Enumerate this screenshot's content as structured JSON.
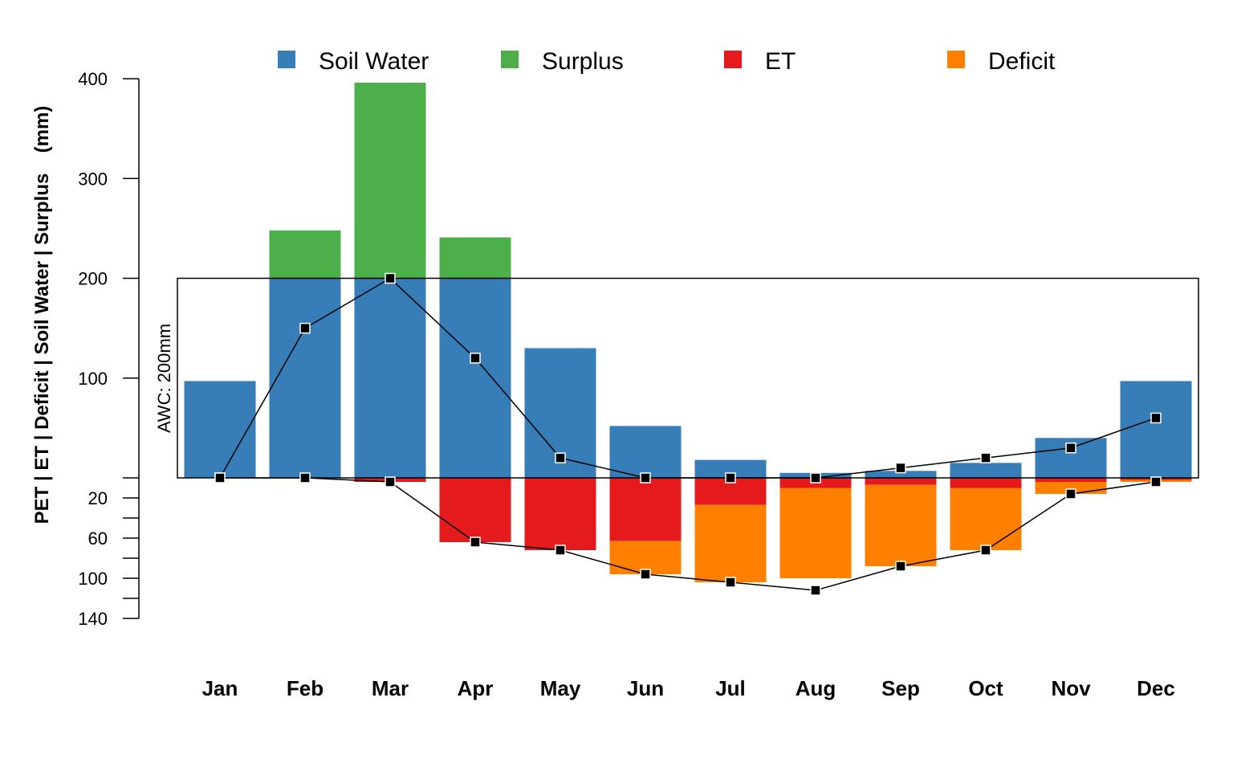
{
  "chart_data": {
    "type": "bar",
    "title": "",
    "xlabel": "",
    "ylabel": {
      "main": "PET | ET | Deficit | Soil Water | Surplus",
      "unit": "(mm)"
    },
    "categories": [
      "Jan",
      "Feb",
      "Mar",
      "Apr",
      "May",
      "Jun",
      "Jul",
      "Aug",
      "Sep",
      "Oct",
      "Nov",
      "Dec"
    ],
    "upper_axis": {
      "ylim": [
        0,
        400
      ],
      "ticks": [
        100,
        200,
        300,
        400
      ]
    },
    "lower_axis": {
      "ylim": [
        0,
        140
      ],
      "ticks": [
        20,
        60,
        100,
        140
      ],
      "minor_ticks": [
        40,
        80,
        120
      ]
    },
    "awc": {
      "value": 200,
      "label": "AWC: 200mm"
    },
    "legend": {
      "position": "top",
      "entries": [
        {
          "name": "Soil Water",
          "color": "#377EB8"
        },
        {
          "name": "Surplus",
          "color": "#4DAF4A"
        },
        {
          "name": "ET",
          "color": "#E41A1C"
        },
        {
          "name": "Deficit",
          "color": "#FF7F00"
        }
      ]
    },
    "series": [
      {
        "name": "Soil Water",
        "color": "#377EB8",
        "values": [
          97,
          200,
          200,
          200,
          130,
          52,
          18,
          5,
          7,
          15,
          40,
          97
        ]
      },
      {
        "name": "Surplus",
        "color": "#4DAF4A",
        "values": [
          0,
          48,
          196,
          41,
          0,
          0,
          0,
          0,
          0,
          0,
          0,
          0
        ]
      },
      {
        "name": "ET",
        "color": "#E41A1C",
        "values": [
          0,
          0,
          4,
          64,
          72,
          63,
          27,
          10,
          7,
          10,
          4,
          2
        ]
      },
      {
        "name": "Deficit",
        "color": "#FF7F00",
        "values": [
          0,
          0,
          0,
          0,
          0,
          33,
          77,
          90,
          81,
          62,
          12,
          2
        ]
      }
    ],
    "lines": {
      "upper": {
        "values": [
          0,
          150,
          200,
          120,
          20,
          0,
          0,
          0,
          10,
          20,
          30,
          60
        ]
      },
      "lower": {
        "values": [
          0,
          0,
          4,
          64,
          72,
          96,
          104,
          112,
          88,
          72,
          16,
          4
        ]
      }
    },
    "colors": {
      "axis": "#000000",
      "line": "#000000",
      "marker_fill": "#000000",
      "marker_edge": "#ffffff"
    }
  }
}
